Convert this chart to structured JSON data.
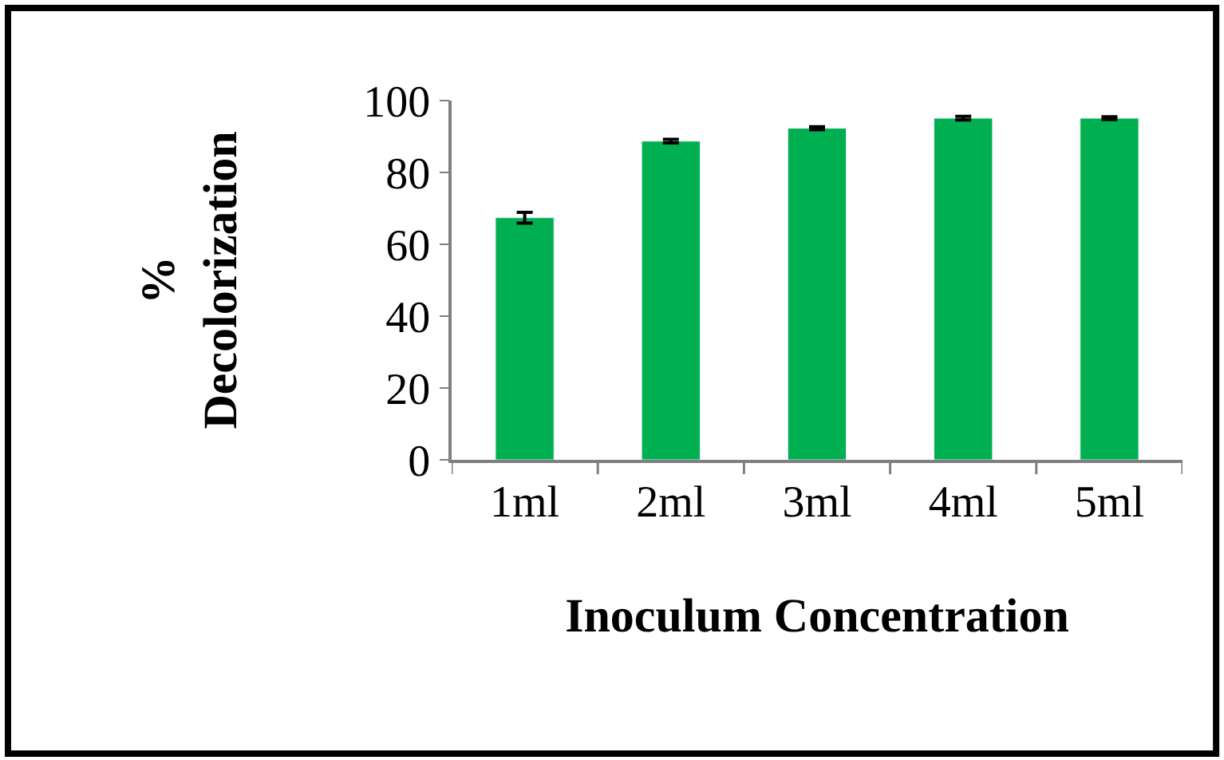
{
  "chart_data": {
    "type": "bar",
    "xlabel": "Inoculum Concentration",
    "ylabel": "%\nDecolorization",
    "categories": [
      "1ml",
      "2ml",
      "3ml",
      "4ml",
      "5ml"
    ],
    "values": [
      67.4,
      88.7,
      92.3,
      95.1,
      95.1
    ],
    "errors": [
      1.5,
      0.5,
      0.4,
      0.5,
      0.4
    ],
    "color": "#00b050",
    "ylim": [
      0,
      100
    ],
    "yticks": [
      0,
      20,
      40,
      60,
      80,
      100
    ]
  }
}
